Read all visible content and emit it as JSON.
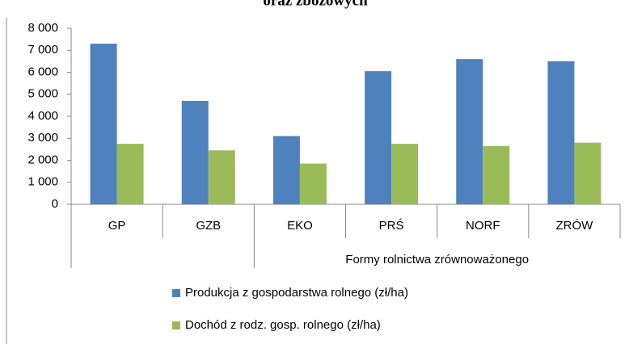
{
  "chart_data": {
    "type": "bar",
    "title": "oraz zbożowych",
    "categories": [
      "GP",
      "GZB",
      "EKO",
      "PRŚ",
      "NORF",
      "ZRÓW"
    ],
    "group_label": "Formy rolnictwa zrównoważonego",
    "series": [
      {
        "name": "Produkcja z gospodarstwa rolnego (zł/ha)",
        "color": "#4f81bd",
        "values": [
          7300,
          4700,
          3100,
          6050,
          6600,
          6500
        ]
      },
      {
        "name": "Dochód z rodz. gosp. rolnego (zł/ha)",
        "color": "#9bbb59",
        "values": [
          2750,
          2450,
          1850,
          2750,
          2650,
          2800
        ]
      }
    ],
    "ylim": [
      0,
      8000
    ],
    "yticks": [
      0,
      {
        "value": 1000,
        "label": "1 000"
      },
      {
        "value": 2000,
        "label": "2 000"
      },
      {
        "value": 3000,
        "label": "3 000"
      },
      {
        "value": 4000,
        "label": "4 000"
      },
      {
        "value": 5000,
        "label": "5 000"
      },
      {
        "value": 6000,
        "label": "6 000"
      },
      {
        "value": 7000,
        "label": "7 000"
      },
      {
        "value": 8000,
        "label": "8 000"
      }
    ]
  }
}
